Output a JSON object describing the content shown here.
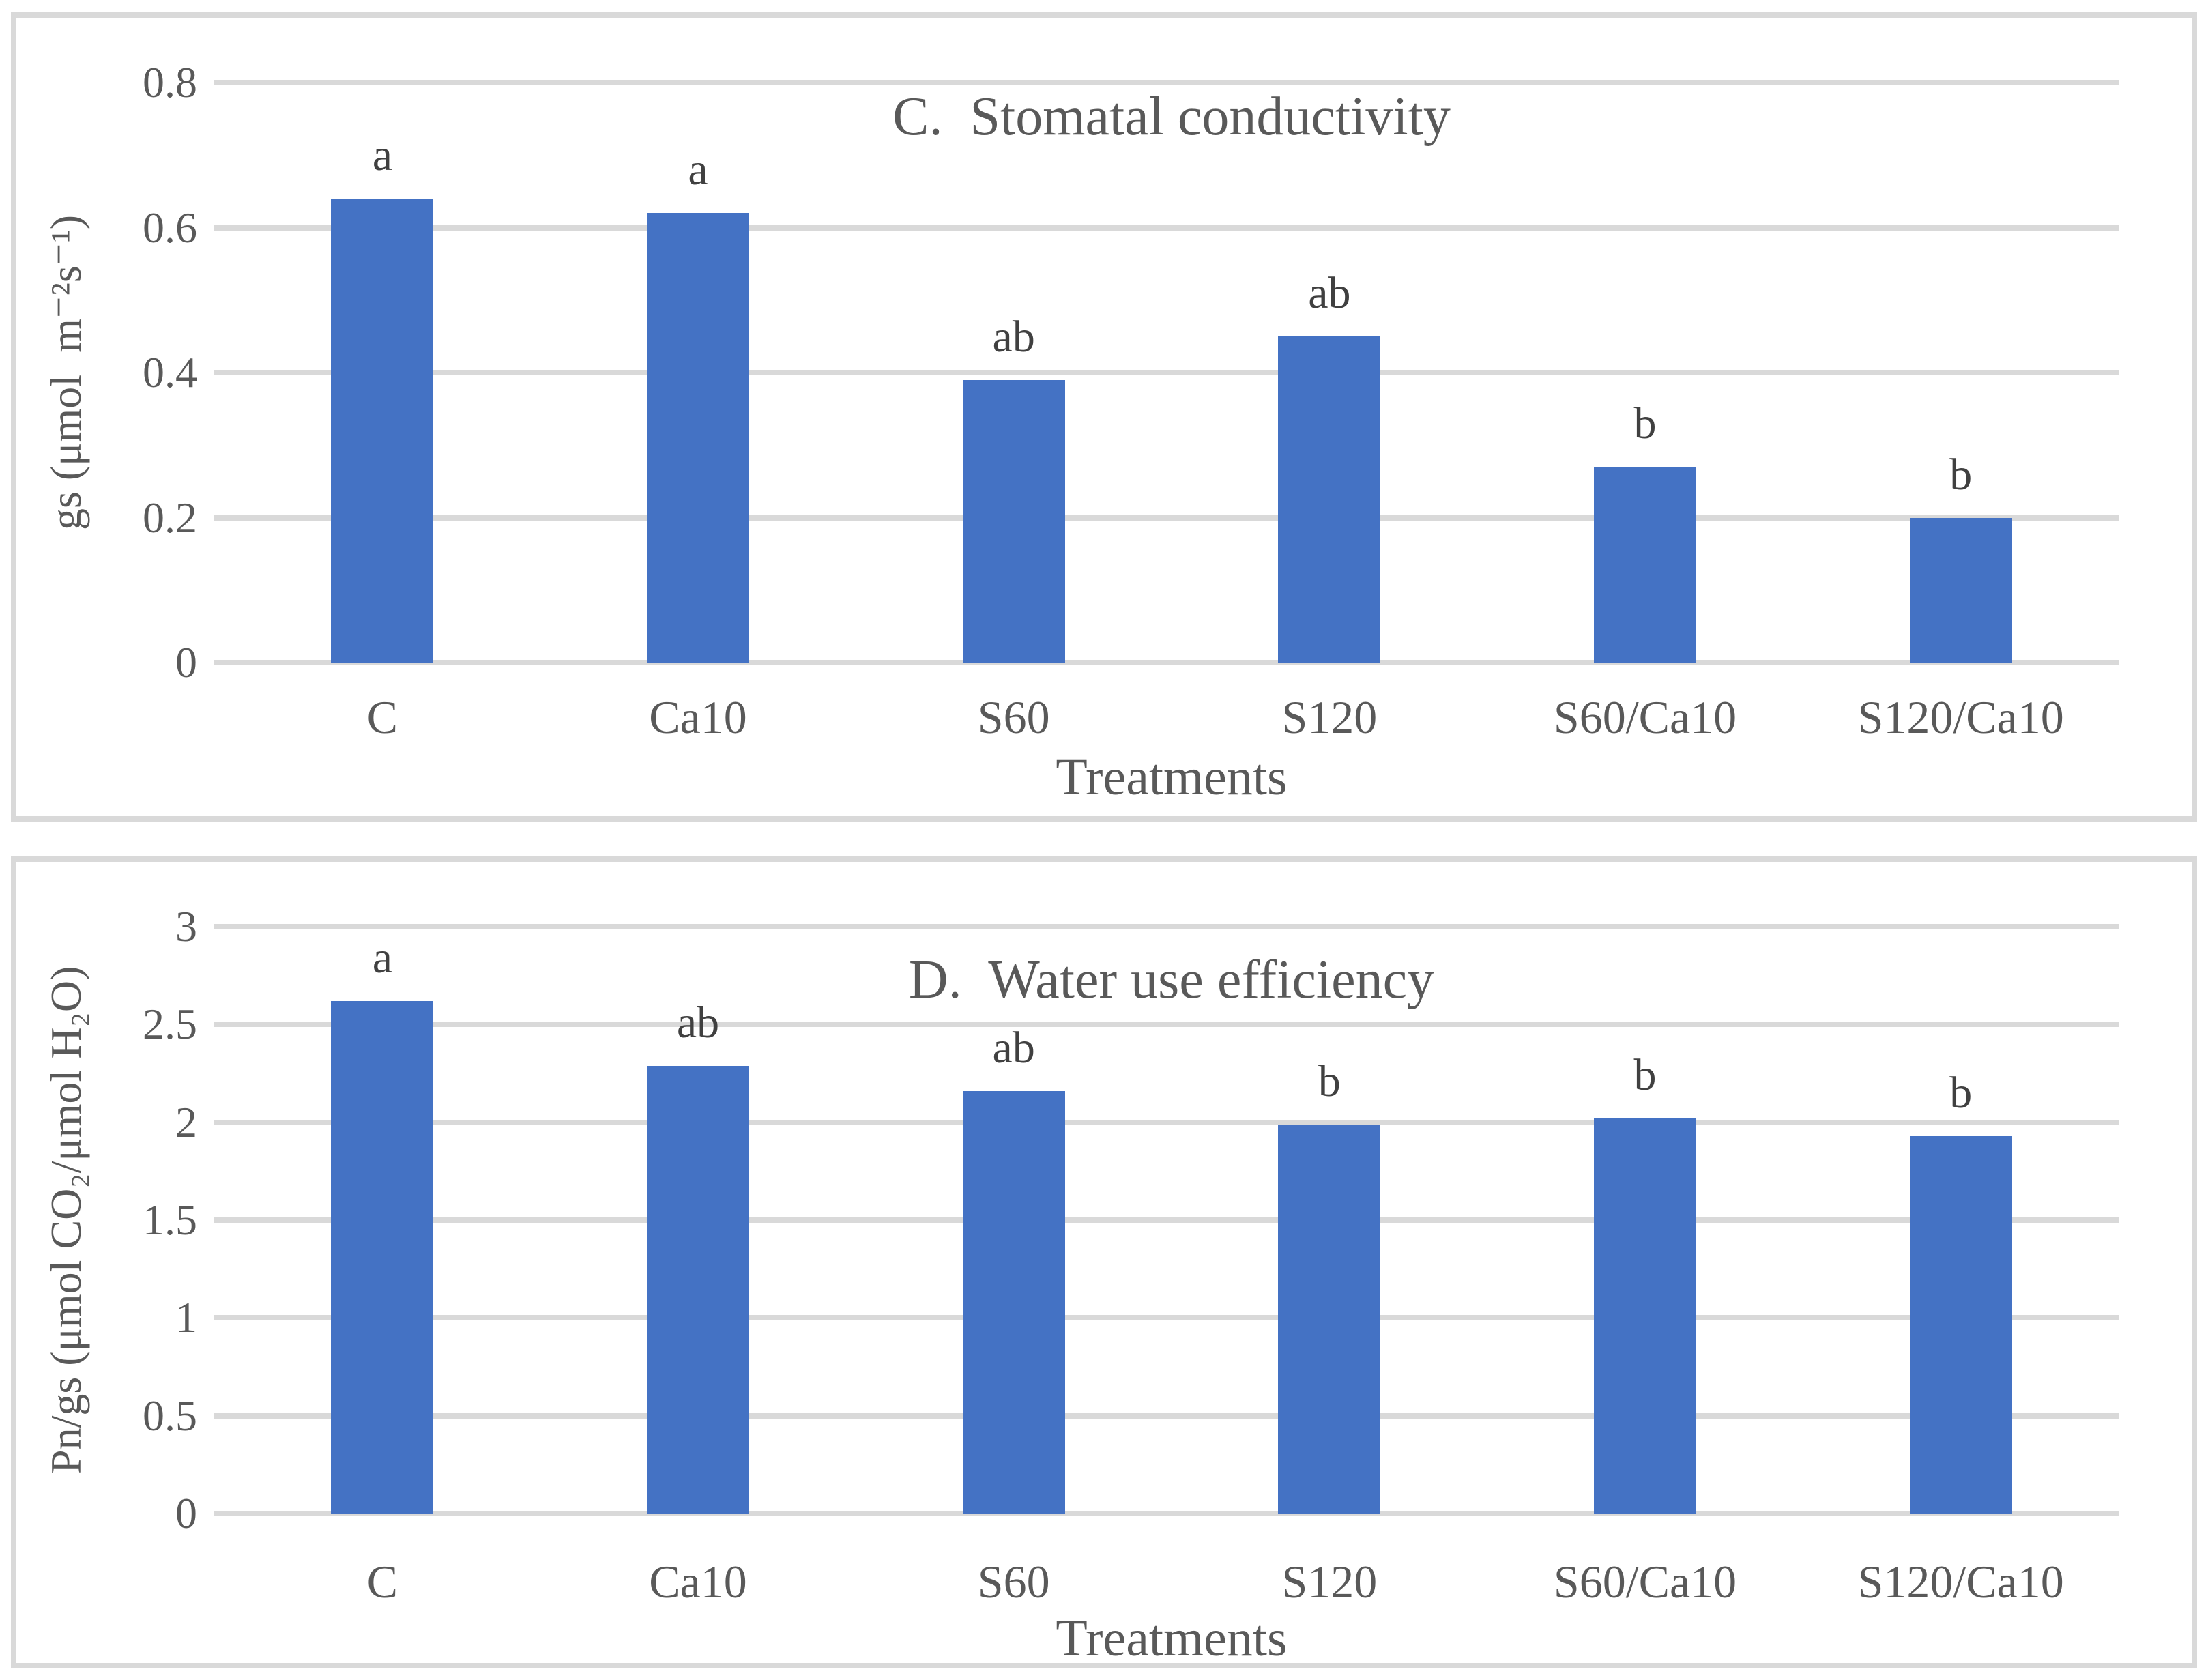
{
  "colors": {
    "bar": "#4472C4",
    "gridline": "#D9D9D9",
    "text": "#595959",
    "panel_border": "#D9D9D9"
  },
  "chart_data": [
    {
      "type": "bar",
      "panel_letter": "C",
      "title": "C.  Stomatal conductivity",
      "ylabel": "gs (μmol  m⁻²s⁻¹)",
      "xlabel": "Treatments",
      "categories": [
        "C",
        "Ca10",
        "S60",
        "S120",
        "S60/Ca10",
        "S120/Ca10"
      ],
      "values": [
        0.64,
        0.62,
        0.39,
        0.45,
        0.27,
        0.2
      ],
      "sig_letters": [
        "a",
        "a",
        "ab",
        "ab",
        "b",
        "b"
      ],
      "y_ticks": [
        "0.8",
        "0.6",
        "0.4",
        "0.2",
        "0"
      ],
      "ylim": [
        0,
        0.8
      ],
      "grid": true,
      "legend": "none",
      "bar_color": "#4472C4"
    },
    {
      "type": "bar",
      "panel_letter": "D",
      "title": "D.  Water use efficiency",
      "ylabel": "Pn/gs (μmol CO₂/μmol H₂O)",
      "xlabel": "Treatments",
      "categories": [
        "C",
        "Ca10",
        "S60",
        "S120",
        "S60/Ca10",
        "S120/Ca10"
      ],
      "values": [
        2.62,
        2.29,
        2.16,
        1.99,
        2.02,
        1.93
      ],
      "sig_letters": [
        "a",
        "ab",
        "ab",
        "b",
        "b",
        "b"
      ],
      "y_ticks": [
        "3",
        "2.5",
        "2",
        "1.5",
        "1",
        "0.5",
        "0"
      ],
      "ylim": [
        0,
        3
      ],
      "grid": true,
      "legend": "none",
      "bar_color": "#4472C4"
    }
  ]
}
